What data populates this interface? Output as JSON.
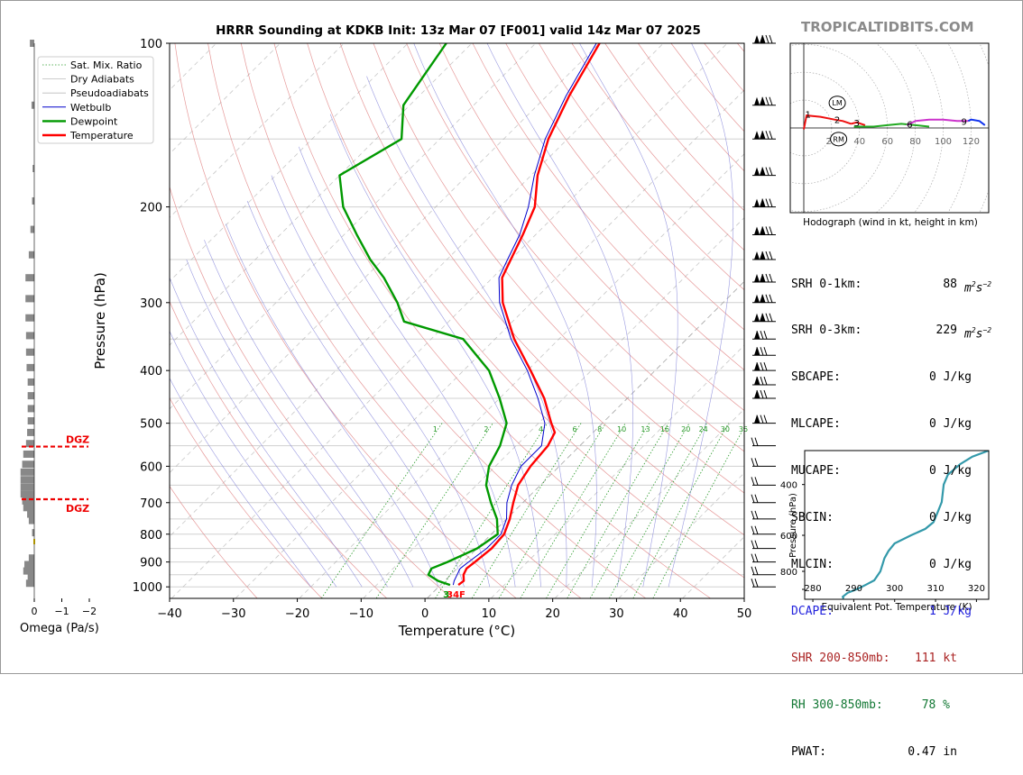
{
  "title": "HRRR Sounding at KDKB Init: 13z Mar 07 [F001] valid 14z Mar 07 2025",
  "brand": "TROPICALTIDBITS.COM",
  "legend": [
    "Sat. Mix. Ratio",
    "Dry Adiabats",
    "Pseudoadiabats",
    "Wetbulb",
    "Dewpoint",
    "Temperature"
  ],
  "colors": {
    "temperature": "#ff0000",
    "dewpoint": "#009900",
    "wetbulb": "#0000cc",
    "hodo_red": "#ee1111",
    "hodo_green": "#22aa22",
    "hodo_magenta": "#cc33cc",
    "hodo_blue": "#1133ee",
    "ept": "#3399aa",
    "dcape": "#2222dd",
    "shr": "#aa2222",
    "rh": "#117733"
  },
  "chart_data": [
    {
      "type": "line",
      "name": "skew-t",
      "xlabel": "Temperature (°C)",
      "ylabel": "Pressure (hPa)",
      "xlim": [
        -40,
        50
      ],
      "ylim": [
        1050,
        100
      ],
      "y_log": true,
      "x_ticks": [
        "−40",
        "−30",
        "−20",
        "−10",
        "0",
        "10",
        "20",
        "30",
        "40",
        "50"
      ],
      "y_ticks": [
        "100",
        "200",
        "300",
        "400",
        "500",
        "600",
        "700",
        "800",
        "900",
        "1000"
      ],
      "mixing_ratio_labels": [
        "1",
        "2",
        "4",
        "6",
        "8",
        "10",
        "13",
        "16",
        "20",
        "24",
        "30",
        "36"
      ],
      "temperature": [
        [
          992,
          2.8
        ],
        [
          975,
          3.0
        ],
        [
          950,
          2.0
        ],
        [
          925,
          1.5
        ],
        [
          900,
          1.8
        ],
        [
          850,
          2.3
        ],
        [
          800,
          2.0
        ],
        [
          750,
          0.5
        ],
        [
          700,
          -1.5
        ],
        [
          650,
          -3.5
        ],
        [
          600,
          -4.5
        ],
        [
          550,
          -5.0
        ],
        [
          520,
          -6.0
        ],
        [
          500,
          -8.0
        ],
        [
          450,
          -13.0
        ],
        [
          400,
          -19.5
        ],
        [
          350,
          -27.0
        ],
        [
          300,
          -34.5
        ],
        [
          270,
          -38.5
        ],
        [
          250,
          -40.0
        ],
        [
          225,
          -42.0
        ],
        [
          200,
          -44.5
        ],
        [
          175,
          -49.0
        ],
        [
          150,
          -53.0
        ],
        [
          125,
          -56.5
        ],
        [
          100,
          -60.0
        ]
      ],
      "dewpoint": [
        [
          992,
          1.5
        ],
        [
          975,
          -1.0
        ],
        [
          950,
          -3.5
        ],
        [
          925,
          -4.0
        ],
        [
          900,
          -2.5
        ],
        [
          850,
          0.0
        ],
        [
          800,
          1.0
        ],
        [
          750,
          -1.5
        ],
        [
          700,
          -5.0
        ],
        [
          650,
          -8.5
        ],
        [
          600,
          -11.0
        ],
        [
          550,
          -12.5
        ],
        [
          500,
          -15.0
        ],
        [
          450,
          -20.0
        ],
        [
          400,
          -26.0
        ],
        [
          350,
          -35.0
        ],
        [
          325,
          -47.0
        ],
        [
          300,
          -51.0
        ],
        [
          270,
          -57.0
        ],
        [
          250,
          -62.0
        ],
        [
          225,
          -68.0
        ],
        [
          200,
          -74.5
        ],
        [
          175,
          -80.0
        ],
        [
          150,
          -76.0
        ],
        [
          130,
          -81.0
        ],
        [
          100,
          -84.0
        ]
      ],
      "wetbulb": [
        [
          992,
          2.0
        ],
        [
          975,
          1.5
        ],
        [
          950,
          1.0
        ],
        [
          925,
          0.5
        ],
        [
          900,
          0.8
        ],
        [
          850,
          1.5
        ],
        [
          800,
          1.5
        ],
        [
          750,
          0.0
        ],
        [
          700,
          -2.5
        ],
        [
          650,
          -4.5
        ],
        [
          600,
          -6.0
        ],
        [
          550,
          -6.0
        ],
        [
          500,
          -9.0
        ],
        [
          450,
          -14.0
        ],
        [
          400,
          -20.0
        ],
        [
          350,
          -27.5
        ],
        [
          300,
          -35.0
        ],
        [
          270,
          -39.0
        ],
        [
          250,
          -40.5
        ],
        [
          225,
          -42.5
        ],
        [
          200,
          -45.5
        ],
        [
          175,
          -49.5
        ],
        [
          150,
          -53.5
        ],
        [
          125,
          -57.0
        ],
        [
          100,
          -60.5
        ]
      ],
      "surface_label": "34F",
      "dgz_label": "DGZ",
      "dgz_pressures": [
        552,
        690
      ]
    },
    {
      "type": "line",
      "name": "hodograph",
      "caption": "Hodograph (wind in kt, height in km)",
      "ring_labels": [
        "20",
        "40",
        "60",
        "80",
        "100",
        "120"
      ],
      "markers": [
        "LM",
        "RM"
      ],
      "height_labels": [
        "1",
        "2",
        "3",
        "6",
        "9"
      ]
    },
    {
      "type": "bar",
      "name": "omega",
      "xlabel": "Omega (Pa/s)",
      "x_ticks": [
        "0",
        "−1",
        "−2"
      ],
      "values": [
        [
          985,
          0.15
        ],
        [
          960,
          0.12
        ],
        [
          935,
          0.2
        ],
        [
          910,
          0.18
        ],
        [
          885,
          0.1
        ],
        [
          795,
          0.04
        ],
        [
          755,
          0.1
        ],
        [
          735,
          0.13
        ],
        [
          715,
          0.2
        ],
        [
          695,
          0.22
        ],
        [
          675,
          0.25
        ],
        [
          655,
          0.25
        ],
        [
          635,
          0.25
        ],
        [
          615,
          0.25
        ],
        [
          595,
          0.22
        ],
        [
          570,
          0.2
        ],
        [
          545,
          0.15
        ],
        [
          520,
          0.13
        ],
        [
          495,
          0.12
        ],
        [
          470,
          0.12
        ],
        [
          445,
          0.12
        ],
        [
          420,
          0.12
        ],
        [
          395,
          0.14
        ],
        [
          370,
          0.15
        ],
        [
          345,
          0.15
        ],
        [
          320,
          0.16
        ],
        [
          295,
          0.16
        ],
        [
          270,
          0.16
        ],
        [
          245,
          0.1
        ],
        [
          220,
          0.07
        ],
        [
          195,
          0.04
        ],
        [
          170,
          0.03
        ],
        [
          130,
          0.05
        ],
        [
          100,
          0.08
        ]
      ]
    },
    {
      "type": "line",
      "name": "equivalent-potential-temperature",
      "xlabel": "Equivalent Pot. Temperature (K)",
      "ylabel": "Pressure (hPa)",
      "xlim": [
        278,
        323
      ],
      "ylim": [
        1000,
        305
      ],
      "x_ticks": [
        "280",
        "290",
        "300",
        "310",
        "320"
      ],
      "y_ticks": [
        "400",
        "600",
        "800"
      ],
      "values": [
        [
          995,
          287.5
        ],
        [
          980,
          287.3
        ],
        [
          950,
          288.5
        ],
        [
          920,
          291
        ],
        [
          890,
          293
        ],
        [
          860,
          295
        ],
        [
          800,
          296.5
        ],
        [
          760,
          297
        ],
        [
          720,
          297.5
        ],
        [
          680,
          298.5
        ],
        [
          640,
          300
        ],
        [
          600,
          304
        ],
        [
          570,
          307.5
        ],
        [
          540,
          309.5
        ],
        [
          500,
          310.5
        ],
        [
          460,
          311.5
        ],
        [
          400,
          312
        ],
        [
          370,
          313
        ],
        [
          340,
          316
        ],
        [
          320,
          319
        ],
        [
          305,
          323
        ]
      ]
    }
  ],
  "stats": [
    {
      "label": "SRH 0-1km:",
      "value": "88",
      "unit": "m2s-2",
      "style": "normal"
    },
    {
      "label": "SRH 0-3km:",
      "value": "229",
      "unit": "m2s-2",
      "style": "normal"
    },
    {
      "label": "SBCAPE:",
      "value": "0 J/kg",
      "unit": "",
      "style": "normal"
    },
    {
      "label": "MLCAPE:",
      "value": "0 J/kg",
      "unit": "",
      "style": "normal"
    },
    {
      "label": "MUCAPE:",
      "value": "0 J/kg",
      "unit": "",
      "style": "normal"
    },
    {
      "label": "SBCIN:",
      "value": "0 J/kg",
      "unit": "",
      "style": "normal"
    },
    {
      "label": "MLCIN:",
      "value": "0 J/kg",
      "unit": "",
      "style": "normal"
    },
    {
      "label": "DCAPE:",
      "value": "1 J/kg",
      "unit": "",
      "style": "dcape"
    },
    {
      "label": "SHR 200-850mb:",
      "value": "111 kt",
      "unit": "",
      "style": "shr"
    },
    {
      "label": "RH 300-850mb:",
      "value": "78 %",
      "unit": "",
      "style": "rh"
    },
    {
      "label": "PWAT:",
      "value": "0.47 in",
      "unit": "",
      "style": "normal"
    }
  ]
}
